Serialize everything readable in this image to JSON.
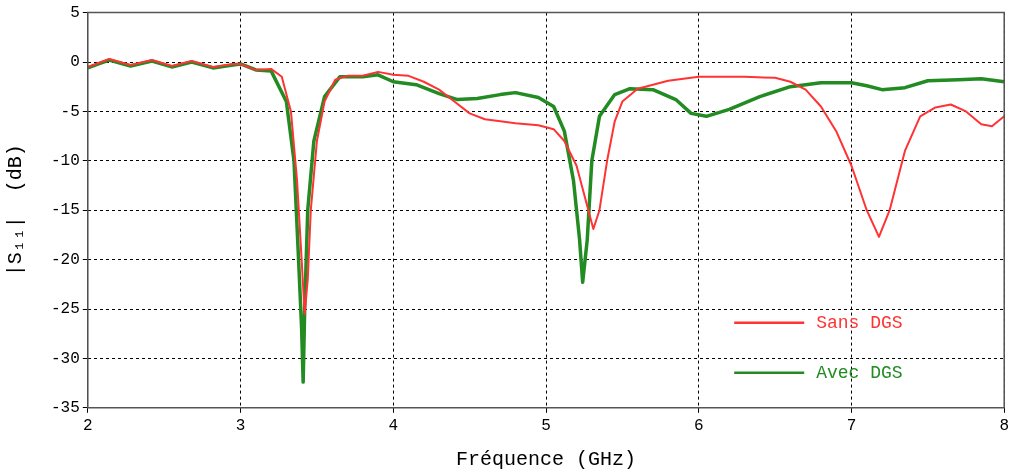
{
  "chart_data": {
    "type": "line",
    "xlabel": "Fréquence (GHz)",
    "ylabel": "|S₁₁|  (dB)",
    "xlim": [
      2,
      8
    ],
    "ylim": [
      -35,
      5
    ],
    "xticks": [
      2,
      3,
      4,
      5,
      6,
      7,
      8
    ],
    "yticks": [
      -35,
      -30,
      -25,
      -20,
      -15,
      -10,
      -5,
      0,
      5
    ],
    "grid": true,
    "legend": "bottom right",
    "marker": "none",
    "line_style": "solid",
    "series": [
      {
        "name": "Sans DGS",
        "color": "#ff3333",
        "x": [
          2.0,
          2.07,
          2.14,
          2.28,
          2.42,
          2.55,
          2.68,
          2.82,
          2.95,
          3.0,
          3.1,
          3.2,
          3.27,
          3.33,
          3.37,
          3.4,
          3.42,
          3.44,
          3.46,
          3.5,
          3.55,
          3.62,
          3.7,
          3.8,
          3.9,
          4.0,
          4.1,
          4.2,
          4.3,
          4.4,
          4.5,
          4.6,
          4.8,
          4.95,
          5.05,
          5.12,
          5.2,
          5.26,
          5.31,
          5.35,
          5.4,
          5.45,
          5.5,
          5.6,
          5.8,
          6.0,
          6.3,
          6.5,
          6.6,
          6.7,
          6.8,
          6.9,
          7.0,
          7.1,
          7.18,
          7.25,
          7.35,
          7.45,
          7.55,
          7.65,
          7.75,
          7.85,
          7.92,
          8.0
        ],
        "values": [
          -0.5,
          -0.1,
          0.3,
          -0.3,
          0.2,
          -0.4,
          0.1,
          -0.5,
          -0.2,
          -0.2,
          -0.8,
          -0.7,
          -1.5,
          -5,
          -12,
          -20,
          -25.5,
          -22,
          -15,
          -8,
          -4,
          -1.8,
          -1.4,
          -1.4,
          -1.0,
          -1.3,
          -1.4,
          -2,
          -2.8,
          -4,
          -5.2,
          -5.8,
          -6.2,
          -6.4,
          -6.8,
          -8,
          -10.5,
          -14,
          -16.9,
          -15,
          -10,
          -6,
          -4,
          -2.7,
          -1.9,
          -1.5,
          -1.5,
          -1.6,
          -2,
          -2.8,
          -4.5,
          -7,
          -10.5,
          -15,
          -17.7,
          -15,
          -9,
          -5.5,
          -4.6,
          -4.3,
          -5,
          -6.3,
          -6.5,
          -5.5
        ]
      },
      {
        "name": "Avec DGS",
        "color": "#228b22",
        "x": [
          2.0,
          2.07,
          2.14,
          2.28,
          2.42,
          2.55,
          2.68,
          2.82,
          2.95,
          3.0,
          3.1,
          3.2,
          3.3,
          3.35,
          3.38,
          3.4,
          3.41,
          3.42,
          3.44,
          3.48,
          3.55,
          3.65,
          3.8,
          3.9,
          4.0,
          4.15,
          4.3,
          4.42,
          4.55,
          4.7,
          4.8,
          4.95,
          5.05,
          5.12,
          5.18,
          5.22,
          5.24,
          5.27,
          5.3,
          5.35,
          5.45,
          5.55,
          5.7,
          5.85,
          5.95,
          6.05,
          6.2,
          6.4,
          6.6,
          6.8,
          7.0,
          7.1,
          7.2,
          7.35,
          7.5,
          7.7,
          7.85,
          8.0
        ],
        "values": [
          -0.6,
          -0.2,
          0.2,
          -0.4,
          0.1,
          -0.5,
          0.0,
          -0.6,
          -0.3,
          -0.2,
          -0.8,
          -0.9,
          -4,
          -10,
          -20,
          -27,
          -32.4,
          -25,
          -15,
          -8,
          -3.5,
          -1.5,
          -1.5,
          -1.3,
          -2.0,
          -2.3,
          -3.2,
          -3.8,
          -3.7,
          -3.3,
          -3.1,
          -3.6,
          -4.5,
          -7,
          -12,
          -18,
          -22.3,
          -18,
          -10,
          -5.5,
          -3.3,
          -2.7,
          -2.8,
          -3.8,
          -5.2,
          -5.5,
          -4.8,
          -3.5,
          -2.5,
          -2.1,
          -2.1,
          -2.4,
          -2.8,
          -2.6,
          -1.9,
          -1.8,
          -1.7,
          -2.0
        ]
      }
    ]
  }
}
